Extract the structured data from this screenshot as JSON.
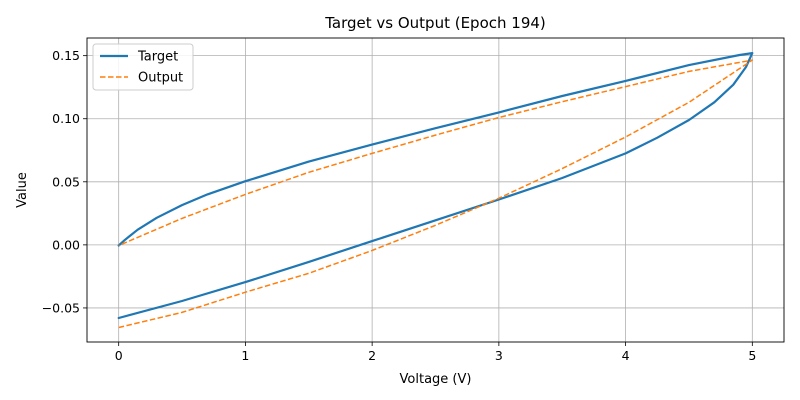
{
  "chart_data": {
    "type": "line",
    "title": "Target vs Output (Epoch 194)",
    "xlabel": "Voltage (V)",
    "ylabel": "Value",
    "xlim": [
      -0.25,
      5.25
    ],
    "ylim": [
      -0.077,
      0.164
    ],
    "xticks": [
      0,
      1,
      2,
      3,
      4,
      5
    ],
    "xtick_labels": [
      "0",
      "1",
      "2",
      "3",
      "4",
      "5"
    ],
    "yticks": [
      -0.05,
      0.0,
      0.05,
      0.1,
      0.15
    ],
    "ytick_labels": [
      "−0.05",
      "0.00",
      "0.05",
      "0.10",
      "0.15"
    ],
    "grid": true,
    "legend_position": "top-left",
    "series": [
      {
        "name": "Target",
        "color": "#1f77b4",
        "style": "solid",
        "points": [
          [
            0,
            -0.058
          ],
          [
            0.5,
            -0.0445
          ],
          [
            1,
            -0.0295
          ],
          [
            1.5,
            -0.0135
          ],
          [
            2,
            0.003
          ],
          [
            2.5,
            0.0195
          ],
          [
            3,
            0.036
          ],
          [
            3.5,
            0.053
          ],
          [
            4,
            0.0725
          ],
          [
            4.25,
            0.085
          ],
          [
            4.5,
            0.099
          ],
          [
            4.7,
            0.113
          ],
          [
            4.85,
            0.127
          ],
          [
            4.95,
            0.141
          ],
          [
            5,
            0.152
          ],
          [
            4.9,
            0.1505
          ],
          [
            4.5,
            0.1425
          ],
          [
            4,
            0.13
          ],
          [
            3.5,
            0.118
          ],
          [
            3,
            0.105
          ],
          [
            2.5,
            0.0925
          ],
          [
            2,
            0.0795
          ],
          [
            1.5,
            0.066
          ],
          [
            1,
            0.0505
          ],
          [
            0.7,
            0.04
          ],
          [
            0.5,
            0.0315
          ],
          [
            0.3,
            0.0215
          ],
          [
            0.15,
            0.012
          ],
          [
            0.05,
            0.004
          ],
          [
            0,
            -0.0005
          ]
        ]
      },
      {
        "name": "Output",
        "color": "#ff7f0e",
        "style": "dashed",
        "points": [
          [
            0,
            -0.0655
          ],
          [
            0.5,
            -0.0535
          ],
          [
            1,
            -0.0375
          ],
          [
            1.5,
            -0.0225
          ],
          [
            2,
            -0.0045
          ],
          [
            2.5,
            0.0155
          ],
          [
            3,
            0.037
          ],
          [
            3.5,
            0.0605
          ],
          [
            4,
            0.0855
          ],
          [
            4.5,
            0.113
          ],
          [
            5,
            0.1465
          ],
          [
            4.5,
            0.1375
          ],
          [
            4,
            0.1255
          ],
          [
            3.5,
            0.1135
          ],
          [
            3,
            0.101
          ],
          [
            2.5,
            0.087
          ],
          [
            2,
            0.0725
          ],
          [
            1.5,
            0.0575
          ],
          [
            1,
            0.04
          ],
          [
            0.5,
            0.021
          ],
          [
            0,
            -0.0005
          ]
        ]
      }
    ]
  }
}
